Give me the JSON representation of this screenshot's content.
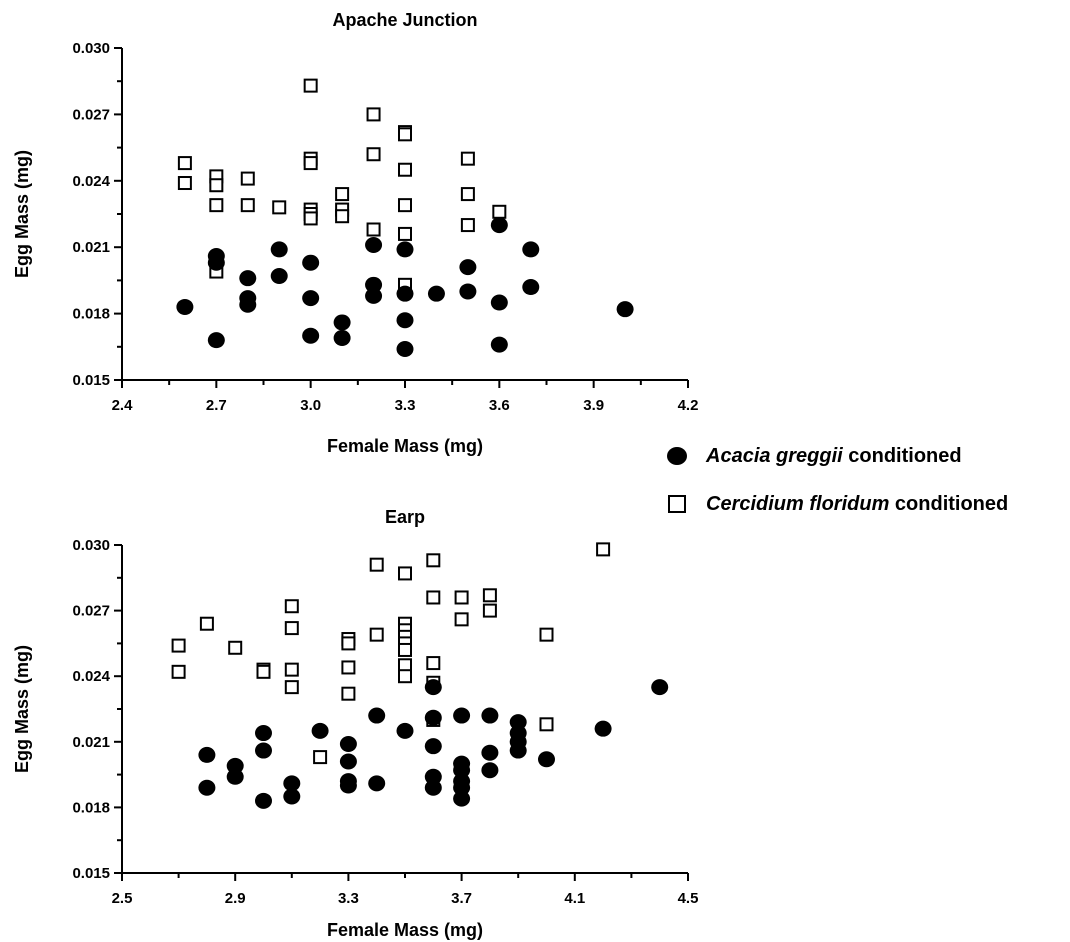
{
  "chart_data": [
    {
      "type": "scatter",
      "title": "Apache Junction",
      "xlabel": "Female Mass (mg)",
      "ylabel": "Egg Mass (mg)",
      "xlim": [
        2.4,
        4.2
      ],
      "ylim": [
        0.015,
        0.03
      ],
      "xticks": [
        "2.4",
        "2.7",
        "3.0",
        "3.3",
        "3.6",
        "3.9",
        "4.2"
      ],
      "yticks": [
        "0.015",
        "0.018",
        "0.021",
        "0.024",
        "0.027",
        "0.030"
      ],
      "series": [
        {
          "name": "Acacia greggii conditioned",
          "marker": "filled-circle",
          "points": [
            [
              2.6,
              0.0183
            ],
            [
              2.7,
              0.0168
            ],
            [
              2.7,
              0.0206
            ],
            [
              2.7,
              0.0203
            ],
            [
              2.8,
              0.0196
            ],
            [
              2.8,
              0.0187
            ],
            [
              2.8,
              0.0184
            ],
            [
              2.9,
              0.0209
            ],
            [
              2.9,
              0.0197
            ],
            [
              3.0,
              0.0203
            ],
            [
              3.0,
              0.0187
            ],
            [
              3.0,
              0.017
            ],
            [
              3.1,
              0.0176
            ],
            [
              3.1,
              0.0169
            ],
            [
              3.2,
              0.0211
            ],
            [
              3.2,
              0.0193
            ],
            [
              3.2,
              0.0188
            ],
            [
              3.3,
              0.0209
            ],
            [
              3.3,
              0.0189
            ],
            [
              3.3,
              0.0177
            ],
            [
              3.3,
              0.0164
            ],
            [
              3.4,
              0.0189
            ],
            [
              3.5,
              0.0201
            ],
            [
              3.5,
              0.019
            ],
            [
              3.6,
              0.022
            ],
            [
              3.6,
              0.0185
            ],
            [
              3.6,
              0.0166
            ],
            [
              3.7,
              0.0209
            ],
            [
              3.7,
              0.0192
            ],
            [
              4.0,
              0.0182
            ]
          ]
        },
        {
          "name": "Cercidium floridum conditioned",
          "marker": "open-square",
          "points": [
            [
              2.6,
              0.0248
            ],
            [
              2.6,
              0.0239
            ],
            [
              2.7,
              0.0242
            ],
            [
              2.7,
              0.0238
            ],
            [
              2.7,
              0.0229
            ],
            [
              2.7,
              0.0199
            ],
            [
              2.8,
              0.0241
            ],
            [
              2.8,
              0.0229
            ],
            [
              2.9,
              0.0228
            ],
            [
              3.0,
              0.0283
            ],
            [
              3.0,
              0.025
            ],
            [
              3.0,
              0.0248
            ],
            [
              3.0,
              0.0227
            ],
            [
              3.0,
              0.0225
            ],
            [
              3.0,
              0.0223
            ],
            [
              3.1,
              0.0234
            ],
            [
              3.1,
              0.0227
            ],
            [
              3.1,
              0.0224
            ],
            [
              3.2,
              0.027
            ],
            [
              3.2,
              0.0252
            ],
            [
              3.2,
              0.0218
            ],
            [
              3.3,
              0.0262
            ],
            [
              3.3,
              0.0261
            ],
            [
              3.3,
              0.0245
            ],
            [
              3.3,
              0.0229
            ],
            [
              3.3,
              0.0216
            ],
            [
              3.3,
              0.0193
            ],
            [
              3.5,
              0.025
            ],
            [
              3.5,
              0.0234
            ],
            [
              3.5,
              0.022
            ],
            [
              3.6,
              0.0226
            ]
          ]
        }
      ]
    },
    {
      "type": "scatter",
      "title": "Earp",
      "xlabel": "Female Mass (mg)",
      "ylabel": "Egg Mass (mg)",
      "xlim": [
        2.5,
        4.5
      ],
      "ylim": [
        0.015,
        0.03
      ],
      "xticks": [
        "2.5",
        "2.9",
        "3.3",
        "3.7",
        "4.1",
        "4.5"
      ],
      "yticks": [
        "0.015",
        "0.018",
        "0.021",
        "0.024",
        "0.027",
        "0.030"
      ],
      "series": [
        {
          "name": "Acacia greggii conditioned",
          "marker": "filled-circle",
          "points": [
            [
              2.8,
              0.0204
            ],
            [
              2.8,
              0.0189
            ],
            [
              2.9,
              0.0199
            ],
            [
              2.9,
              0.0194
            ],
            [
              3.0,
              0.0214
            ],
            [
              3.0,
              0.0206
            ],
            [
              3.0,
              0.0183
            ],
            [
              3.1,
              0.0191
            ],
            [
              3.1,
              0.0185
            ],
            [
              3.2,
              0.0215
            ],
            [
              3.3,
              0.0209
            ],
            [
              3.3,
              0.0201
            ],
            [
              3.3,
              0.0192
            ],
            [
              3.3,
              0.019
            ],
            [
              3.4,
              0.0222
            ],
            [
              3.4,
              0.0191
            ],
            [
              3.5,
              0.0215
            ],
            [
              3.6,
              0.0235
            ],
            [
              3.6,
              0.0221
            ],
            [
              3.6,
              0.0208
            ],
            [
              3.6,
              0.0194
            ],
            [
              3.6,
              0.0189
            ],
            [
              3.7,
              0.0222
            ],
            [
              3.7,
              0.02
            ],
            [
              3.7,
              0.0197
            ],
            [
              3.7,
              0.0192
            ],
            [
              3.7,
              0.0189
            ],
            [
              3.7,
              0.0184
            ],
            [
              3.8,
              0.0222
            ],
            [
              3.8,
              0.0205
            ],
            [
              3.8,
              0.0197
            ],
            [
              3.9,
              0.0219
            ],
            [
              3.9,
              0.0214
            ],
            [
              3.9,
              0.021
            ],
            [
              3.9,
              0.0206
            ],
            [
              4.0,
              0.0202
            ],
            [
              4.2,
              0.0216
            ],
            [
              4.4,
              0.0235
            ]
          ]
        },
        {
          "name": "Cercidium floridum conditioned",
          "marker": "open-square",
          "points": [
            [
              2.7,
              0.0254
            ],
            [
              2.7,
              0.0242
            ],
            [
              2.8,
              0.0264
            ],
            [
              2.9,
              0.0253
            ],
            [
              3.0,
              0.0243
            ],
            [
              3.0,
              0.0242
            ],
            [
              3.1,
              0.0272
            ],
            [
              3.1,
              0.0262
            ],
            [
              3.1,
              0.0243
            ],
            [
              3.1,
              0.0235
            ],
            [
              3.2,
              0.0203
            ],
            [
              3.3,
              0.0257
            ],
            [
              3.3,
              0.0255
            ],
            [
              3.3,
              0.0244
            ],
            [
              3.3,
              0.0232
            ],
            [
              3.4,
              0.0291
            ],
            [
              3.4,
              0.0259
            ],
            [
              3.5,
              0.0287
            ],
            [
              3.5,
              0.0264
            ],
            [
              3.5,
              0.0261
            ],
            [
              3.5,
              0.0258
            ],
            [
              3.5,
              0.0255
            ],
            [
              3.5,
              0.0252
            ],
            [
              3.5,
              0.0245
            ],
            [
              3.5,
              0.024
            ],
            [
              3.6,
              0.0293
            ],
            [
              3.6,
              0.0276
            ],
            [
              3.6,
              0.0246
            ],
            [
              3.6,
              0.0237
            ],
            [
              3.6,
              0.022
            ],
            [
              3.7,
              0.0276
            ],
            [
              3.7,
              0.0266
            ],
            [
              3.8,
              0.0277
            ],
            [
              3.8,
              0.027
            ],
            [
              4.0,
              0.0259
            ],
            [
              4.0,
              0.0218
            ],
            [
              4.2,
              0.0298
            ]
          ]
        }
      ]
    }
  ],
  "legend": {
    "items": [
      {
        "marker": "filled-circle",
        "species": "Acacia greggii",
        "suffix": " conditioned"
      },
      {
        "marker": "open-square",
        "species": "Cercidium floridum",
        "suffix": " conditioned"
      }
    ]
  }
}
